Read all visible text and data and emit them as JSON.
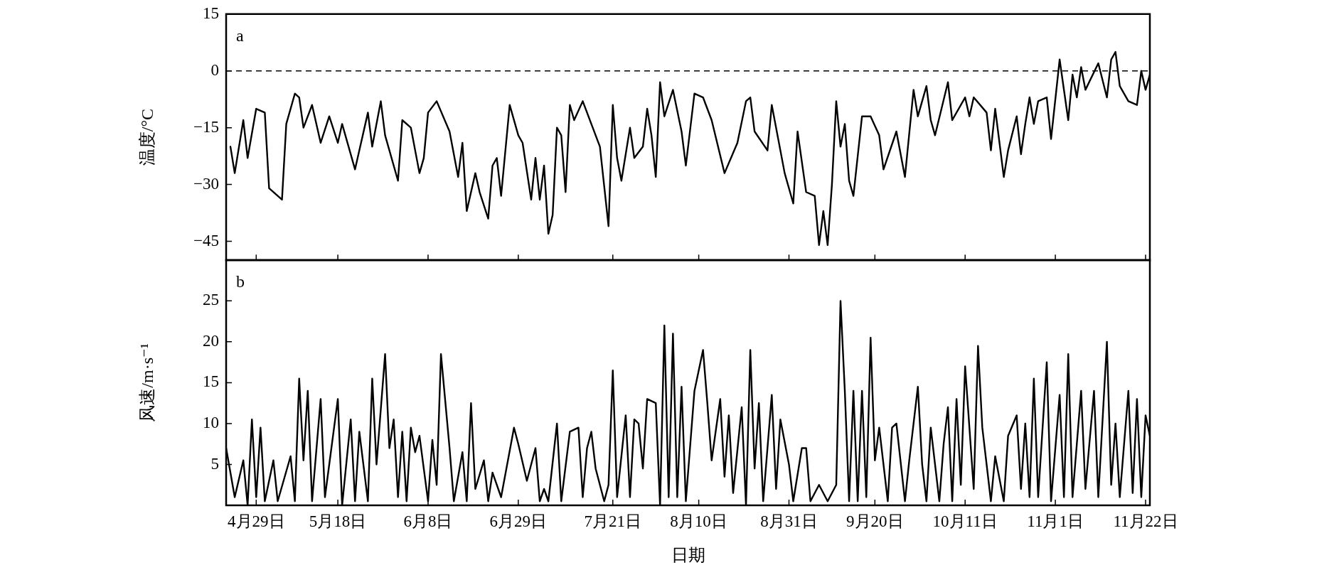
{
  "chart_data": [
    {
      "type": "line",
      "ylabel": "温度/°C",
      "annotations": [
        "a"
      ],
      "tick_labels": "y",
      "legend": false,
      "grid": false,
      "marker": "none",
      "line_style": "solid",
      "xlim": [
        "--04-22",
        "--11-23"
      ],
      "xticks": [
        {
          "value": "--04-29",
          "label": null
        },
        {
          "value": "--05-18",
          "label": null
        },
        {
          "value": "--06-08",
          "label": null
        },
        {
          "value": "--06-29",
          "label": null
        },
        {
          "value": "--07-21",
          "label": null
        },
        {
          "value": "--08-10",
          "label": null
        },
        {
          "value": "--08-31",
          "label": null
        },
        {
          "value": "--09-20",
          "label": null
        },
        {
          "value": "--10-11",
          "label": null
        },
        {
          "value": "--11-01",
          "label": null
        },
        {
          "value": "--11-22",
          "label": null
        }
      ],
      "ylim": [
        -50,
        15
      ],
      "yticks": [
        {
          "value": -45,
          "label": "−45"
        },
        {
          "value": -30,
          "label": "−30"
        },
        {
          "value": -15,
          "label": "−15"
        },
        0,
        15
      ],
      "ref_lines": [
        {
          "axis": "y",
          "value": 0,
          "color": "#000000",
          "line_style": "dashed"
        }
      ],
      "series": [
        {
          "color": "#000000",
          "x": [
            "--04-23",
            "--04-24",
            "--04-26",
            "--04-27",
            "--04-29",
            "--05-01",
            "--05-02",
            "--05-05",
            "--05-06",
            "--05-08",
            "--05-09",
            "--05-10",
            "--05-12",
            "--05-14",
            "--05-16",
            "--05-18",
            "--05-19",
            "--05-22",
            "--05-25",
            "--05-26",
            "--05-28",
            "--05-29",
            "--06-01",
            "--06-02",
            "--06-04",
            "--06-06",
            "--06-07",
            "--06-08",
            "--06-10",
            "--06-13",
            "--06-15",
            "--06-16",
            "--06-17",
            "--06-19",
            "--06-20",
            "--06-22",
            "--06-23",
            "--06-24",
            "--06-25",
            "--06-27",
            "--06-29",
            "--06-30",
            "--07-02",
            "--07-03",
            "--07-04",
            "--07-05",
            "--07-06",
            "--07-07",
            "--07-08",
            "--07-09",
            "--07-10",
            "--07-11",
            "--07-12",
            "--07-14",
            "--07-16",
            "--07-18",
            "--07-20",
            "--07-21",
            "--07-22",
            "--07-23",
            "--07-25",
            "--07-26",
            "--07-28",
            "--07-29",
            "--07-30",
            "--07-31",
            "--08-01",
            "--08-02",
            "--08-04",
            "--08-06",
            "--08-07",
            "--08-09",
            "--08-11",
            "--08-13",
            "--08-16",
            "--08-19",
            "--08-21",
            "--08-22",
            "--08-23",
            "--08-26",
            "--08-27",
            "--08-30",
            "--09-01",
            "--09-02",
            "--09-04",
            "--09-06",
            "--09-07",
            "--09-08",
            "--09-09",
            "--09-10",
            "--09-11",
            "--09-12",
            "--09-13",
            "--09-14",
            "--09-15",
            "--09-17",
            "--09-19",
            "--09-21",
            "--09-22",
            "--09-25",
            "--09-27",
            "--09-29",
            "--09-30",
            "--10-02",
            "--10-03",
            "--10-04",
            "--10-07",
            "--10-08",
            "--10-11",
            "--10-12",
            "--10-13",
            "--10-16",
            "--10-17",
            "--10-18",
            "--10-20",
            "--10-21",
            "--10-23",
            "--10-24",
            "--10-25",
            "--10-26",
            "--10-27",
            "--10-28",
            "--10-30",
            "--10-31",
            "--11-02",
            "--11-04",
            "--11-05",
            "--11-06",
            "--11-07",
            "--11-08",
            "--11-11",
            "--11-13",
            "--11-14",
            "--11-15",
            "--11-16",
            "--11-18",
            "--11-20",
            "--11-21",
            "--11-22",
            "--11-23"
          ],
          "values": [
            -20,
            -27,
            -13,
            -23,
            -10,
            -11,
            -31,
            -34,
            -14,
            -6,
            -7,
            -15,
            -9,
            -19,
            -12,
            -19,
            -14,
            -26,
            -11,
            -20,
            -8,
            -17,
            -29,
            -13,
            -15,
            -27,
            -23,
            -11,
            -8,
            -16,
            -28,
            -19,
            -37,
            -27,
            -32,
            -39,
            -25,
            -23,
            -33,
            -9,
            -17,
            -19,
            -34,
            -23,
            -34,
            -25,
            -43,
            -38,
            -15,
            -17,
            -32,
            -9,
            -13,
            -8,
            -14,
            -20,
            -41,
            -9,
            -23,
            -29,
            -15,
            -23,
            -20,
            -10,
            -17,
            -28,
            -3,
            -12,
            -5,
            -16,
            -25,
            -6,
            -7,
            -13,
            -27,
            -19,
            -8,
            -7,
            -16,
            -21,
            -9,
            -27,
            -35,
            -16,
            -32,
            -33,
            -46,
            -37,
            -46,
            -30,
            -8,
            -20,
            -14,
            -29,
            -33,
            -12,
            -12,
            -17,
            -26,
            -16,
            -28,
            -5,
            -12,
            -4,
            -13,
            -17,
            -3,
            -13,
            -7,
            -12,
            -7,
            -11,
            -21,
            -10,
            -28,
            -21,
            -12,
            -22,
            -14,
            -7,
            -14,
            -8,
            -7,
            -18,
            3,
            -13,
            -1,
            -7,
            1,
            -5,
            2,
            -7,
            3,
            5,
            -4,
            -8,
            -9,
            0,
            -5,
            -1
          ]
        }
      ]
    },
    {
      "type": "line",
      "ylabel": "风速/m·s⁻¹",
      "xlabel": "日期",
      "annotations": [
        "b"
      ],
      "legend": false,
      "grid": false,
      "marker": "none",
      "line_style": "solid",
      "xlim": [
        "--04-22",
        "--11-23"
      ],
      "xticks": [
        {
          "value": "--04-29",
          "label": "4月29日"
        },
        {
          "value": "--05-18",
          "label": "5月18日"
        },
        {
          "value": "--06-08",
          "label": "6月8日"
        },
        {
          "value": "--06-29",
          "label": "6月29日"
        },
        {
          "value": "--07-21",
          "label": "7月21日"
        },
        {
          "value": "--08-10",
          "label": "8月10日"
        },
        {
          "value": "--08-31",
          "label": "8月31日"
        },
        {
          "value": "--09-20",
          "label": "9月20日"
        },
        {
          "value": "--10-11",
          "label": "10月11日"
        },
        {
          "value": "--11-01",
          "label": "11月1日"
        },
        {
          "value": "--11-22",
          "label": "11月22日"
        }
      ],
      "ylim": [
        0,
        30
      ],
      "yticks": [
        5,
        10,
        15,
        20,
        25
      ],
      "series": [
        {
          "color": "#000000",
          "x": [
            "--04-22",
            "--04-24",
            "--04-26",
            "--04-27",
            "--04-28",
            "--04-29",
            "--04-30",
            "--05-01",
            "--05-03",
            "--05-04",
            "--05-07",
            "--05-08",
            "--05-09",
            "--05-10",
            "--05-11",
            "--05-12",
            "--05-14",
            "--05-15",
            "--05-18",
            "--05-19",
            "--05-21",
            "--05-22",
            "--05-23",
            "--05-25",
            "--05-26",
            "--05-27",
            "--05-29",
            "--05-30",
            "--05-31",
            "--06-01",
            "--06-02",
            "--06-03",
            "--06-04",
            "--06-05",
            "--06-06",
            "--06-08",
            "--06-09",
            "--06-10",
            "--06-11",
            "--06-13",
            "--06-14",
            "--06-16",
            "--06-17",
            "--06-18",
            "--06-19",
            "--06-21",
            "--06-22",
            "--06-23",
            "--06-25",
            "--06-28",
            "--06-29",
            "--07-01",
            "--07-03",
            "--07-04",
            "--07-05",
            "--07-06",
            "--07-08",
            "--07-09",
            "--07-11",
            "--07-13",
            "--07-14",
            "--07-15",
            "--07-16",
            "--07-17",
            "--07-19",
            "--07-20",
            "--07-21",
            "--07-22",
            "--07-24",
            "--07-25",
            "--07-26",
            "--07-27",
            "--07-28",
            "--07-29",
            "--07-31",
            "--08-01",
            "--08-02",
            "--08-03",
            "--08-04",
            "--08-05",
            "--08-06",
            "--08-07",
            "--08-09",
            "--08-11",
            "--08-12",
            "--08-13",
            "--08-15",
            "--08-16",
            "--08-17",
            "--08-18",
            "--08-20",
            "--08-21",
            "--08-22",
            "--08-23",
            "--08-24",
            "--08-25",
            "--08-27",
            "--08-28",
            "--08-29",
            "--08-31",
            "--09-01",
            "--09-03",
            "--09-04",
            "--09-05",
            "--09-07",
            "--09-09",
            "--09-11",
            "--09-12",
            "--09-13",
            "--09-14",
            "--09-15",
            "--09-16",
            "--09-17",
            "--09-18",
            "--09-19",
            "--09-20",
            "--09-21",
            "--09-23",
            "--09-24",
            "--09-25",
            "--09-27",
            "--09-28",
            "--09-30",
            "--10-01",
            "--10-02",
            "--10-03",
            "--10-05",
            "--10-06",
            "--10-07",
            "--10-08",
            "--10-09",
            "--10-10",
            "--10-11",
            "--10-13",
            "--10-14",
            "--10-15",
            "--10-17",
            "--10-18",
            "--10-20",
            "--10-21",
            "--10-23",
            "--10-24",
            "--10-25",
            "--10-26",
            "--10-27",
            "--10-28",
            "--10-30",
            "--10-31",
            "--11-02",
            "--11-03",
            "--11-04",
            "--11-05",
            "--11-07",
            "--11-08",
            "--11-10",
            "--11-11",
            "--11-13",
            "--11-14",
            "--11-15",
            "--11-16",
            "--11-18",
            "--11-19",
            "--11-20",
            "--11-21",
            "--11-22",
            "--11-23"
          ],
          "values": [
            7,
            1,
            5.5,
            0,
            10.5,
            1,
            9.5,
            0.5,
            5.5,
            0.5,
            6,
            0.5,
            15.5,
            5.5,
            14,
            0.5,
            13,
            1,
            13,
            0,
            10.5,
            0.5,
            9,
            0.5,
            15.5,
            5,
            18.5,
            7,
            10.5,
            1,
            9,
            0.5,
            9.5,
            6.5,
            8.5,
            0.5,
            8,
            2.5,
            18.5,
            7,
            0.5,
            6.5,
            0.5,
            12.5,
            2,
            5.5,
            0.5,
            4,
            1,
            9.5,
            7.5,
            3,
            7,
            0.5,
            2,
            0.5,
            10,
            0.5,
            9,
            9.5,
            1,
            7,
            9,
            4.5,
            0.5,
            2.5,
            16.5,
            1,
            11,
            1,
            10.5,
            10,
            4.5,
            13,
            12.5,
            0,
            22,
            1,
            21,
            1,
            14.5,
            0.5,
            14,
            19,
            12.5,
            5.5,
            13,
            3.5,
            11,
            1.5,
            12,
            0,
            19,
            4.5,
            12.5,
            0.5,
            13.5,
            2,
            10.5,
            5,
            0.5,
            7,
            7,
            0.5,
            2.5,
            0.5,
            2.5,
            25,
            14,
            0.5,
            14,
            0.5,
            14,
            1,
            20.5,
            5.5,
            9.5,
            0.5,
            9.5,
            10,
            0.5,
            5.5,
            14.5,
            5,
            0.5,
            9.5,
            0.5,
            7.5,
            12,
            0.5,
            13,
            2.5,
            17,
            2,
            19.5,
            9.5,
            0.5,
            6,
            0.5,
            8.5,
            11,
            2,
            10,
            1,
            15.5,
            1,
            17.5,
            0.5,
            13.5,
            1,
            18.5,
            1,
            14,
            2,
            14,
            1,
            20,
            2.5,
            10,
            1,
            14,
            1.5,
            13,
            1,
            11,
            8.5
          ]
        }
      ]
    }
  ]
}
